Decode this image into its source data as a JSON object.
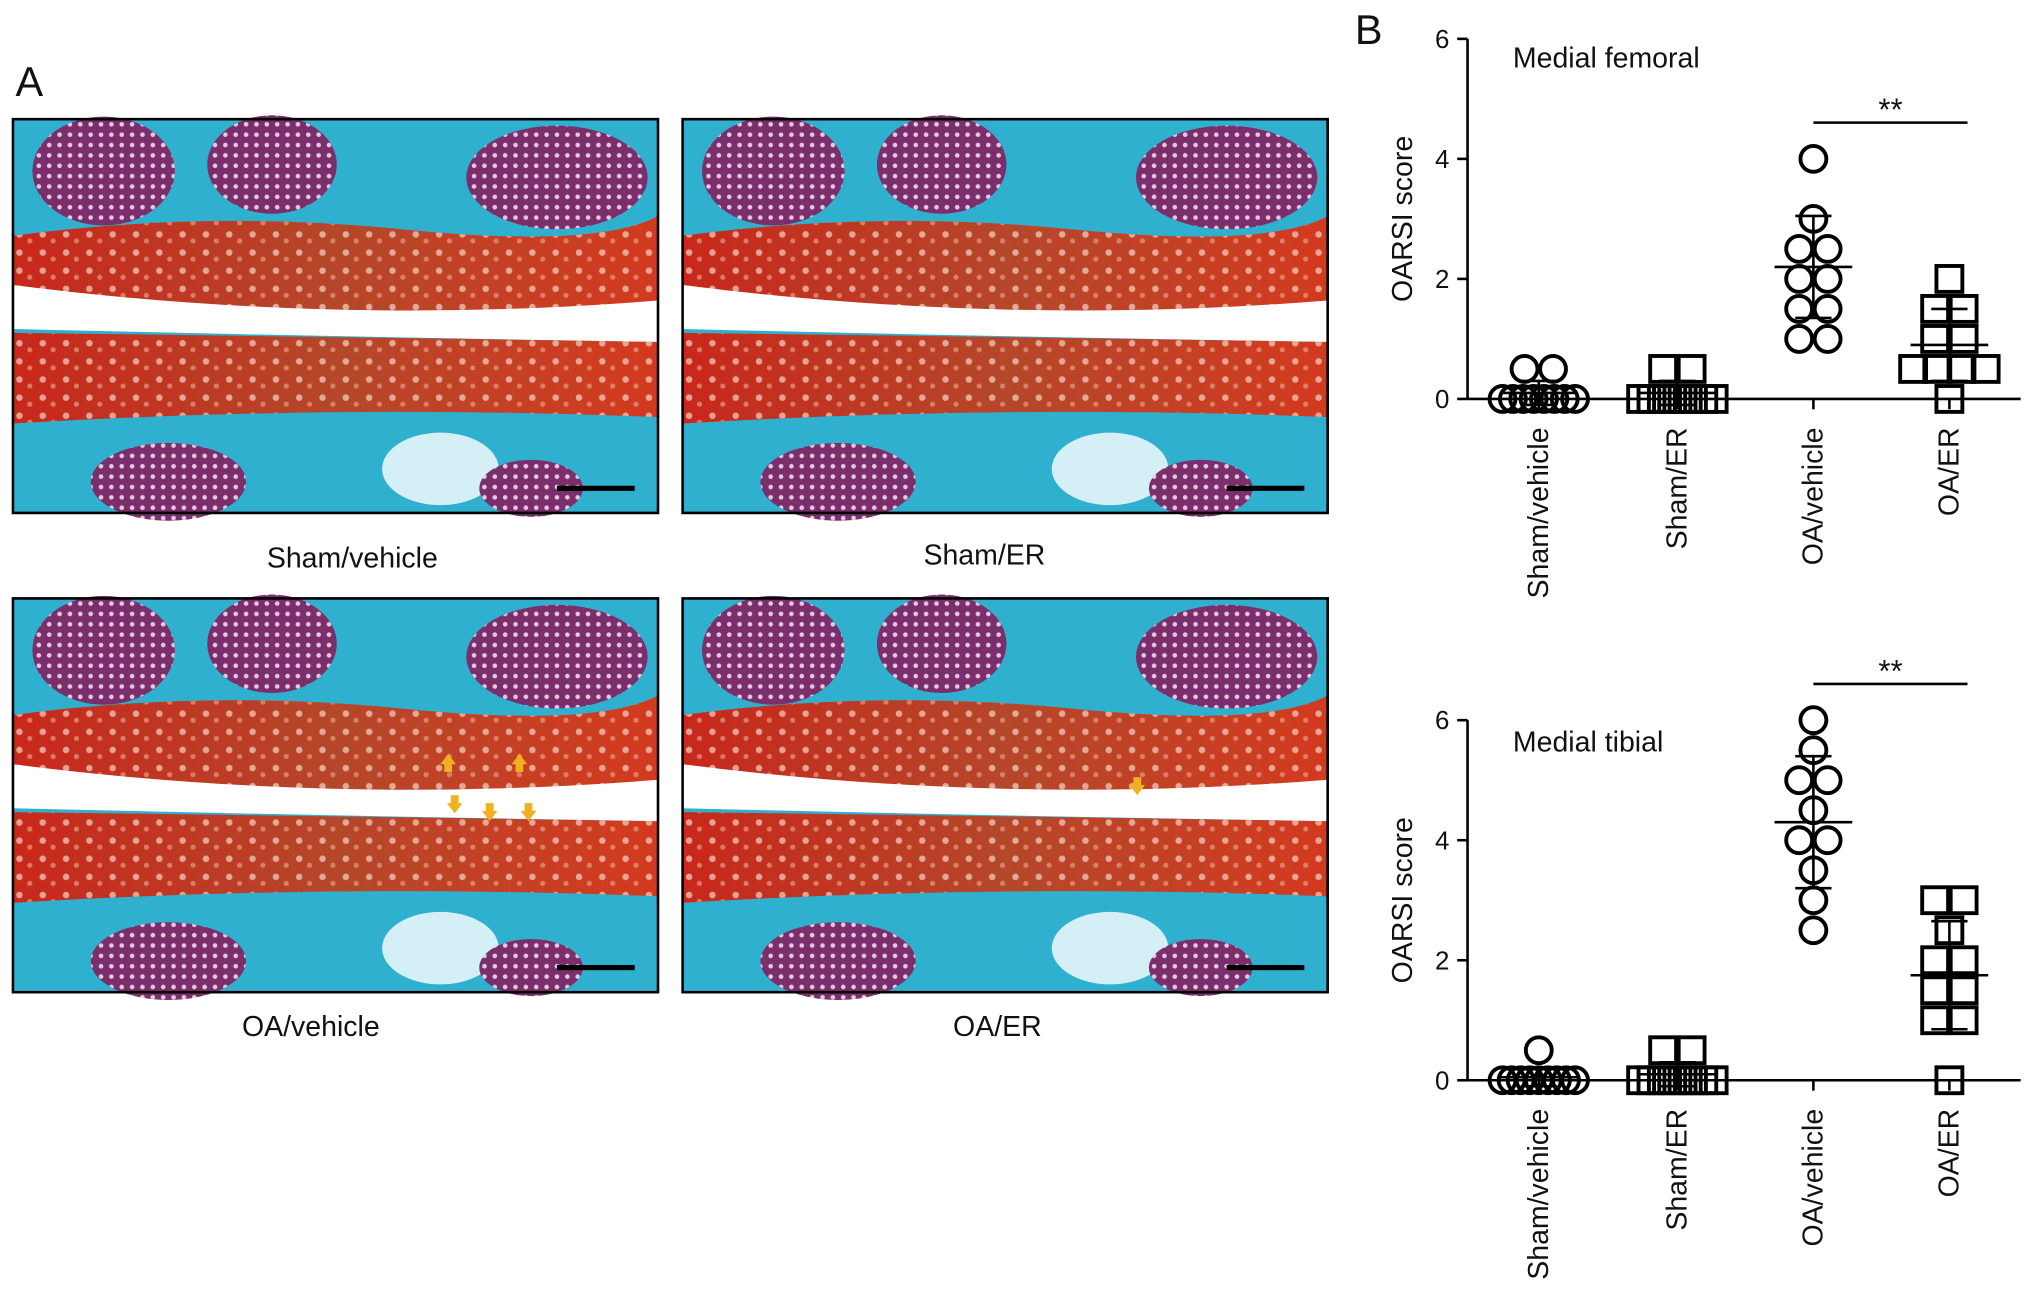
{
  "panels": {
    "a": "A",
    "b": "B"
  },
  "images": {
    "captions": [
      "Sham/vehicle",
      "Sham/ER",
      "OA/vehicle",
      "OA/ER"
    ]
  },
  "chart_data": [
    {
      "type": "dot",
      "title": "Medial femoral",
      "y_label": "OARSI score",
      "categories": [
        "Sham/vehicle",
        "Sham/ER",
        "OA/vehicle",
        "OA/ER"
      ],
      "markers": [
        "circle",
        "square",
        "circle",
        "square"
      ],
      "values": [
        [
          0,
          0,
          0,
          0,
          0,
          0,
          0,
          0,
          0.5,
          0.5
        ],
        [
          0,
          0,
          0,
          0,
          0,
          0,
          0,
          0,
          0.5,
          0.5
        ],
        [
          4,
          3,
          2.5,
          2.5,
          2,
          2,
          1.5,
          1.5,
          1,
          1
        ],
        [
          2,
          1.5,
          1.5,
          1,
          1,
          0.5,
          0.5,
          0.5,
          0.5,
          0
        ]
      ],
      "means": [
        0.1,
        0.1,
        2.2,
        0.9
      ],
      "sds": [
        0.2,
        0.2,
        0.85,
        0.6
      ],
      "annotation": "**",
      "ylim": [
        0,
        6
      ],
      "yticks": [
        0,
        2,
        4,
        6
      ]
    },
    {
      "type": "dot",
      "title": "Medial tibial",
      "y_label": "OARSI score",
      "categories": [
        "Sham/vehicle",
        "Sham/ER",
        "OA/vehicle",
        "OA/ER"
      ],
      "markers": [
        "circle",
        "square",
        "circle",
        "square"
      ],
      "values": [
        [
          0,
          0,
          0,
          0,
          0,
          0,
          0,
          0,
          0,
          0.5
        ],
        [
          0,
          0,
          0,
          0,
          0,
          0,
          0,
          0,
          0.5,
          0.5
        ],
        [
          6,
          5.5,
          5,
          5,
          4.5,
          4,
          4,
          3.5,
          3,
          2.5
        ],
        [
          3,
          3,
          2.5,
          2,
          2,
          1.5,
          1.5,
          1,
          1,
          0
        ]
      ],
      "means": [
        0.05,
        0.1,
        4.3,
        1.75
      ],
      "sds": [
        0.15,
        0.2,
        1.1,
        0.9
      ],
      "annotation": "**",
      "ylim": [
        0,
        6
      ],
      "yticks": [
        0,
        2,
        4,
        6
      ]
    }
  ]
}
